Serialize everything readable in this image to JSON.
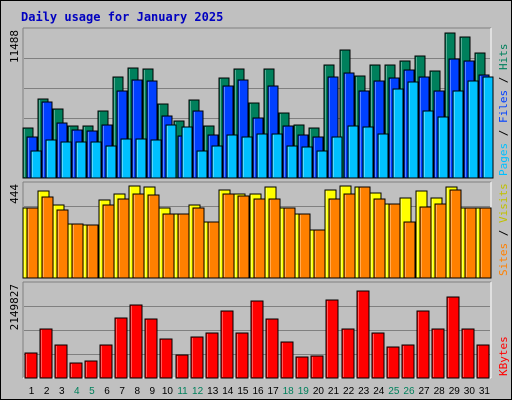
{
  "title": "Daily usage for January 2025",
  "chart_data": [
    {
      "type": "bar",
      "panel": "hits-files-pages",
      "max_label": "11488",
      "ylim": [
        0,
        11488
      ],
      "grid": true,
      "categories": [
        "1",
        "2",
        "3",
        "4",
        "5",
        "6",
        "7",
        "8",
        "9",
        "10",
        "11",
        "12",
        "13",
        "14",
        "15",
        "16",
        "17",
        "18",
        "19",
        "20",
        "21",
        "22",
        "23",
        "24",
        "25",
        "26",
        "27",
        "28",
        "29",
        "30",
        "31"
      ],
      "weekend_days": [
        4,
        5,
        11,
        12,
        18,
        19,
        25,
        26
      ],
      "series": [
        {
          "name": "Hits",
          "color": "#00805c",
          "values": [
            3946,
            6206,
            5398,
            4124,
            4086,
            5299,
            7956,
            8659,
            8589,
            5794,
            4469,
            6138,
            4124,
            7851,
            8589,
            5898,
            8589,
            5110,
            4153,
            3946,
            8870,
            10091,
            7993,
            8870,
            8870,
            9188,
            9612,
            8405,
            11397,
            11116,
            9870
          ]
        },
        {
          "name": "Files",
          "color": "#0040ff",
          "values": [
            3206,
            5972,
            4315,
            3785,
            3718,
            4173,
            6825,
            7724,
            7621,
            4841,
            3292,
            5297,
            3417,
            7258,
            7724,
            4758,
            7257,
            4129,
            3417,
            3206,
            7956,
            8291,
            6825,
            7621,
            7830,
            8497,
            7956,
            6825,
            9336,
            9189,
            8119
          ]
        },
        {
          "name": "Pages",
          "color": "#00c0ff",
          "values": [
            2161,
            2977,
            2794,
            2806,
            2794,
            2533,
            3082,
            3034,
            2977,
            4190,
            3993,
            2161,
            2533,
            3417,
            3206,
            3462,
            3473,
            2533,
            2476,
            2161,
            3206,
            4129,
            3999,
            3473,
            6971,
            7543,
            5292,
            4763,
            6826,
            7630,
            7956
          ]
        }
      ]
    },
    {
      "type": "bar",
      "panel": "visits-sites",
      "max_label": "444",
      "ylim": [
        0,
        444
      ],
      "grid": true,
      "categories": [
        "1",
        "2",
        "3",
        "4",
        "5",
        "6",
        "7",
        "8",
        "9",
        "10",
        "11",
        "12",
        "13",
        "14",
        "15",
        "16",
        "17",
        "18",
        "19",
        "20",
        "21",
        "22",
        "23",
        "24",
        "25",
        "26",
        "27",
        "28",
        "29",
        "30",
        "31"
      ],
      "weekend_days": [
        4,
        5,
        11,
        12,
        18,
        19,
        25,
        26
      ],
      "series": [
        {
          "name": "Visits",
          "color": "#ffff00",
          "values": [
            337,
            422,
            350,
            263,
            257,
            378,
            405,
            444,
            438,
            337,
            311,
            350,
            270,
            425,
            405,
            404,
            438,
            337,
            311,
            233,
            425,
            444,
            438,
            408,
            356,
            385,
            419,
            385,
            438,
            337,
            337
          ]
        },
        {
          "name": "Sites",
          "color": "#ff8000",
          "values": [
            337,
            390,
            326,
            263,
            257,
            350,
            380,
            405,
            400,
            310,
            311,
            337,
            270,
            405,
            397,
            380,
            380,
            337,
            311,
            233,
            380,
            405,
            438,
            380,
            356,
            270,
            342,
            356,
            425,
            337,
            337
          ]
        }
      ]
    },
    {
      "type": "bar",
      "panel": "kbytes",
      "max_label": "2149827",
      "ylim": [
        0,
        2149827
      ],
      "grid": true,
      "categories": [
        "1",
        "2",
        "3",
        "4",
        "5",
        "6",
        "7",
        "8",
        "9",
        "10",
        "11",
        "12",
        "13",
        "14",
        "15",
        "16",
        "17",
        "18",
        "19",
        "20",
        "21",
        "22",
        "23",
        "24",
        "25",
        "26",
        "27",
        "28",
        "29",
        "30",
        "31"
      ],
      "weekend_days": [
        4,
        5,
        11,
        12,
        18,
        19,
        25,
        26
      ],
      "series": [
        {
          "name": "KBytes",
          "color": "#ff0000",
          "values": [
            594350,
            1155416,
            764474,
            350160,
            395155,
            764474,
            1404983,
            1707497,
            1375127,
            905380,
            535730,
            952510,
            1044987,
            1564683,
            1044987,
            1791419,
            1375127,
            849451,
            483113,
            512762,
            1816264,
            1155416,
            2022130,
            1044987,
            712744,
            764474,
            1564683,
            1155416,
            1890530,
            1155416,
            764474
          ]
        }
      ]
    }
  ],
  "right_labels": {
    "panel1": [
      {
        "text": "Pages",
        "color": "#00c0ff"
      },
      {
        "text": " / ",
        "color": "#000000"
      },
      {
        "text": "Files",
        "color": "#0040ff"
      },
      {
        "text": " / ",
        "color": "#000000"
      },
      {
        "text": "Hits",
        "color": "#00805c"
      }
    ],
    "panel2": [
      {
        "text": "Sites",
        "color": "#ff8000"
      },
      {
        "text": " / ",
        "color": "#000000"
      },
      {
        "text": "Visits",
        "color": "#c0c000"
      }
    ],
    "panel3": [
      {
        "text": "KBytes",
        "color": "#ff0000"
      }
    ]
  },
  "colors": {
    "background": "#c0c0c0",
    "title": "#0000c0",
    "weekday_label": "#000000",
    "weekend_label": "#00805c"
  }
}
